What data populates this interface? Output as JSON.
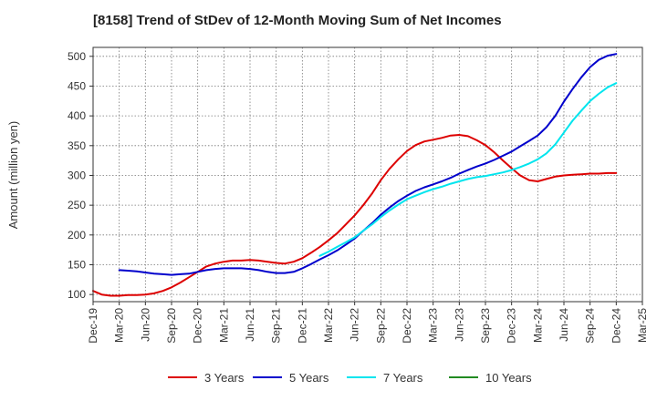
{
  "chart_data": {
    "type": "line",
    "title": "[8158]  Trend of StDev of 12-Month Moving Sum of Net Incomes",
    "xlabel": "",
    "ylabel": "Amount (million yen)",
    "ylim": [
      88,
      515
    ],
    "yticks": [
      100,
      150,
      200,
      250,
      300,
      350,
      400,
      450,
      500
    ],
    "grid": true,
    "legend_position": "bottom",
    "categories": [
      "Dec-19",
      "Mar-20",
      "Jun-20",
      "Sep-20",
      "Dec-20",
      "Mar-21",
      "Jun-21",
      "Sep-21",
      "Dec-21",
      "Mar-22",
      "Jun-22",
      "Sep-22",
      "Dec-22",
      "Mar-23",
      "Jun-23",
      "Sep-23",
      "Dec-23",
      "Mar-24",
      "Jun-24",
      "Sep-24",
      "Dec-24",
      "Mar-25"
    ],
    "series": [
      {
        "name": "3 Years",
        "color": "#dd0000",
        "points": [
          [
            0,
            106
          ],
          [
            0.33,
            100
          ],
          [
            0.67,
            98
          ],
          [
            1,
            98
          ],
          [
            1.33,
            99
          ],
          [
            1.67,
            99
          ],
          [
            2,
            100
          ],
          [
            2.33,
            102
          ],
          [
            2.67,
            106
          ],
          [
            3,
            112
          ],
          [
            3.33,
            120
          ],
          [
            3.67,
            129
          ],
          [
            4,
            138
          ],
          [
            4.33,
            147
          ],
          [
            4.67,
            152
          ],
          [
            5,
            155
          ],
          [
            5.33,
            157
          ],
          [
            5.67,
            157
          ],
          [
            6,
            158
          ],
          [
            6.33,
            157
          ],
          [
            6.67,
            155
          ],
          [
            7,
            153
          ],
          [
            7.33,
            152
          ],
          [
            7.67,
            155
          ],
          [
            8,
            161
          ],
          [
            8.33,
            170
          ],
          [
            8.67,
            180
          ],
          [
            9,
            191
          ],
          [
            9.33,
            203
          ],
          [
            9.67,
            218
          ],
          [
            10,
            233
          ],
          [
            10.33,
            250
          ],
          [
            10.67,
            270
          ],
          [
            11,
            292
          ],
          [
            11.33,
            311
          ],
          [
            11.67,
            327
          ],
          [
            12,
            341
          ],
          [
            12.33,
            351
          ],
          [
            12.67,
            357
          ],
          [
            13,
            360
          ],
          [
            13.33,
            363
          ],
          [
            13.67,
            367
          ],
          [
            14,
            368
          ],
          [
            14.33,
            366
          ],
          [
            14.67,
            359
          ],
          [
            15,
            351
          ],
          [
            15.33,
            339
          ],
          [
            15.67,
            325
          ],
          [
            16,
            312
          ],
          [
            16.33,
            300
          ],
          [
            16.67,
            292
          ],
          [
            17,
            290
          ],
          [
            17.33,
            294
          ],
          [
            17.67,
            298
          ],
          [
            18,
            300
          ],
          [
            18.33,
            301
          ],
          [
            18.67,
            302
          ],
          [
            19,
            303
          ],
          [
            19.33,
            303
          ],
          [
            19.67,
            304
          ],
          [
            20,
            304
          ]
        ]
      },
      {
        "name": "5 Years",
        "color": "#0000cc",
        "points": [
          [
            1,
            141
          ],
          [
            1.33,
            140
          ],
          [
            1.67,
            139
          ],
          [
            2,
            137
          ],
          [
            2.33,
            135
          ],
          [
            2.67,
            134
          ],
          [
            3,
            133
          ],
          [
            3.33,
            134
          ],
          [
            3.67,
            135
          ],
          [
            4,
            138
          ],
          [
            4.33,
            141
          ],
          [
            4.67,
            143
          ],
          [
            5,
            144
          ],
          [
            5.33,
            144
          ],
          [
            5.67,
            144
          ],
          [
            6,
            143
          ],
          [
            6.33,
            141
          ],
          [
            6.67,
            138
          ],
          [
            7,
            136
          ],
          [
            7.33,
            136
          ],
          [
            7.67,
            138
          ],
          [
            8,
            144
          ],
          [
            8.33,
            151
          ],
          [
            8.67,
            159
          ],
          [
            9,
            166
          ],
          [
            9.33,
            174
          ],
          [
            9.67,
            184
          ],
          [
            10,
            194
          ],
          [
            10.33,
            207
          ],
          [
            10.67,
            220
          ],
          [
            11,
            234
          ],
          [
            11.33,
            246
          ],
          [
            11.67,
            257
          ],
          [
            12,
            266
          ],
          [
            12.33,
            274
          ],
          [
            12.67,
            280
          ],
          [
            13,
            285
          ],
          [
            13.33,
            290
          ],
          [
            13.67,
            296
          ],
          [
            14,
            303
          ],
          [
            14.33,
            309
          ],
          [
            14.67,
            315
          ],
          [
            15,
            320
          ],
          [
            15.33,
            326
          ],
          [
            15.67,
            333
          ],
          [
            16,
            340
          ],
          [
            16.33,
            349
          ],
          [
            16.67,
            358
          ],
          [
            17,
            367
          ],
          [
            17.33,
            381
          ],
          [
            17.67,
            400
          ],
          [
            18,
            424
          ],
          [
            18.33,
            445
          ],
          [
            18.67,
            465
          ],
          [
            19,
            482
          ],
          [
            19.33,
            494
          ],
          [
            19.67,
            501
          ],
          [
            20,
            504
          ]
        ]
      },
      {
        "name": "7 Years",
        "color": "#00e5ee",
        "points": [
          [
            8.67,
            165
          ],
          [
            9,
            172
          ],
          [
            9.33,
            180
          ],
          [
            9.67,
            188
          ],
          [
            10,
            196
          ],
          [
            10.33,
            207
          ],
          [
            10.67,
            218
          ],
          [
            11,
            230
          ],
          [
            11.33,
            241
          ],
          [
            11.67,
            251
          ],
          [
            12,
            260
          ],
          [
            12.33,
            266
          ],
          [
            12.67,
            272
          ],
          [
            13,
            277
          ],
          [
            13.33,
            281
          ],
          [
            13.67,
            286
          ],
          [
            14,
            290
          ],
          [
            14.33,
            294
          ],
          [
            14.67,
            297
          ],
          [
            15,
            299
          ],
          [
            15.33,
            302
          ],
          [
            15.67,
            305
          ],
          [
            16,
            309
          ],
          [
            16.33,
            314
          ],
          [
            16.67,
            320
          ],
          [
            17,
            327
          ],
          [
            17.33,
            337
          ],
          [
            17.67,
            352
          ],
          [
            18,
            372
          ],
          [
            18.33,
            392
          ],
          [
            18.67,
            409
          ],
          [
            19,
            425
          ],
          [
            19.33,
            437
          ],
          [
            19.67,
            448
          ],
          [
            20,
            455
          ]
        ]
      },
      {
        "name": "10 Years",
        "color": "#228b22",
        "points": []
      }
    ]
  }
}
